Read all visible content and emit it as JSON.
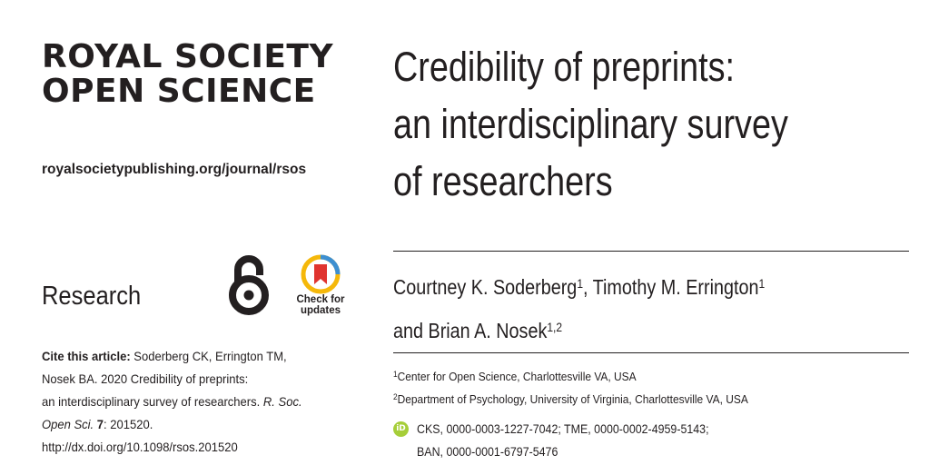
{
  "journal": {
    "name_line1": "ROYAL SOCIETY",
    "name_line2": "OPEN SCIENCE",
    "url": "royalsocietypublishing.org/journal/rsos"
  },
  "section": "Research",
  "check_for_updates": {
    "line1": "Check for",
    "line2": "updates"
  },
  "icons": {
    "open_access": "open-access-lock-icon",
    "check_for_updates": "check-for-updates-icon",
    "orcid": "orcid-icon"
  },
  "colors": {
    "text": "#231f20",
    "orcid": "#a6ce39",
    "cfu_red": "#e0342f",
    "cfu_yellow": "#f5b80a",
    "cfu_blue": "#3d8fd1"
  },
  "citation": {
    "label": "Cite this article:",
    "line1_rest": " Soderberg CK, Errington TM,",
    "line2": "Nosek BA. 2020 Credibility of preprints:",
    "line3_a": "an interdisciplinary survey of researchers. ",
    "line3_journal": "R. Soc.",
    "line4_journal": "Open Sci.",
    "line4_vol": "7",
    "line4_rest": ": 201520.",
    "line5": "http://dx.doi.org/10.1098/rsos.201520"
  },
  "title": {
    "line1": "Credibility of preprints:",
    "line2": "an interdisciplinary survey",
    "line3": "of researchers"
  },
  "authors": {
    "a1": "Courtney K. Soderberg",
    "a1_sup": "1",
    "sep": ", ",
    "a2": "Timothy M. Errington",
    "a2_sup": "1",
    "and": "and ",
    "a3": "Brian A. Nosek",
    "a3_sup": "1,2"
  },
  "affiliations": [
    {
      "num": "1",
      "text": "Center for Open Science, Charlottesville VA, USA"
    },
    {
      "num": "2",
      "text": "Department of Psychology, University of Virginia, Charlottesville VA, USA"
    }
  ],
  "orcid": {
    "badge": "iD",
    "line1": "CKS, 0000-0003-1227-7042; TME, 0000-0002-4959-5143;",
    "line2": "BAN, 0000-0001-6797-5476"
  }
}
